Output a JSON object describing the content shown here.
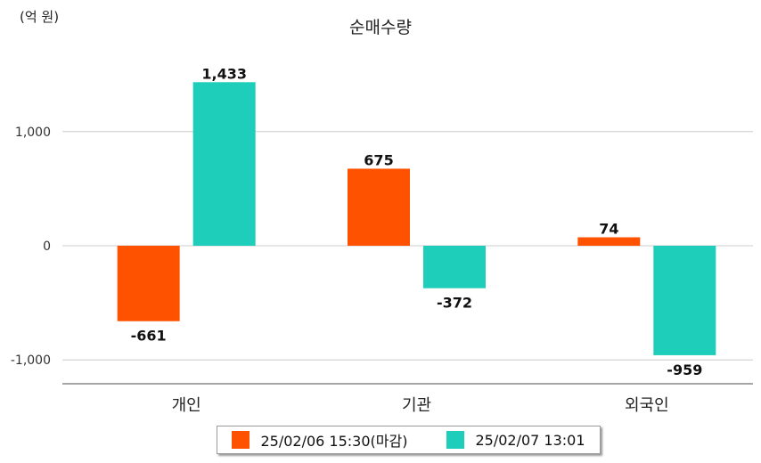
{
  "unit_label": "(억 원)",
  "chart_data": {
    "type": "bar",
    "title": "순매수량",
    "categories": [
      "개인",
      "기관",
      "외국인"
    ],
    "series": [
      {
        "name": "25/02/06 15:30(마감)",
        "color": "#ff5200",
        "values": [
          -661,
          675,
          74
        ]
      },
      {
        "name": "25/02/07 13:01",
        "color": "#1ecdba",
        "values": [
          1433,
          -372,
          -959
        ]
      }
    ],
    "yticks": [
      -1000,
      0,
      1000
    ],
    "ytick_labels": [
      "-1,000",
      "0",
      "1,000"
    ],
    "data_labels": [
      [
        "-661",
        "675",
        "74"
      ],
      [
        "1,433",
        "-372",
        "-959"
      ]
    ],
    "ylim": [
      -1200,
      1650
    ],
    "grid": true,
    "legend_position": "bottom"
  }
}
